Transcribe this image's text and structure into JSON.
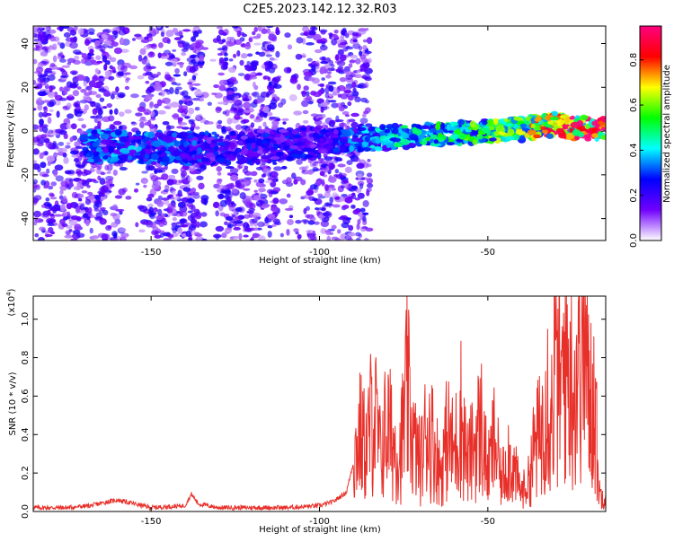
{
  "title": "C2E5.2023.142.12.32.R03",
  "chart_data": [
    {
      "type": "heatmap",
      "xlabel": "Height of straight line (km)",
      "ylabel": "Frequency (Hz)",
      "xlim": [
        -185,
        -15
      ],
      "ylim": [
        -50,
        48
      ],
      "xticks": [
        -150,
        -100,
        -50
      ],
      "xtick_labels": [
        "-150",
        "-100",
        "-50"
      ],
      "yticks": [
        40,
        20,
        0,
        -20,
        -40
      ],
      "ytick_labels": [
        "40",
        "20",
        "0",
        "-20",
        "-40"
      ],
      "colorbar": {
        "label": "Normalized spectral amplitude",
        "range": [
          0,
          0.95
        ],
        "ticks": [
          0.0,
          0.2,
          0.4,
          0.6,
          0.8
        ],
        "tick_labels": [
          "0.0",
          "0.2",
          "0.4",
          "0.6",
          "0.8"
        ],
        "colors": [
          "#ffffff",
          "#7000ff",
          "#0000ff",
          "#00ffff",
          "#00ff00",
          "#ffff00",
          "#ff0000",
          "#ff0080"
        ]
      },
      "ridge": [
        {
          "x": -165,
          "y": -7,
          "amp": 0.35
        },
        {
          "x": -140,
          "y": -8,
          "amp": 0.3
        },
        {
          "x": -127,
          "y": -8,
          "amp": 0.25
        },
        {
          "x": -100,
          "y": -5,
          "amp": 0.25
        },
        {
          "x": -80,
          "y": -3,
          "amp": 0.4
        },
        {
          "x": -60,
          "y": -1,
          "amp": 0.5
        },
        {
          "x": -40,
          "y": 1,
          "amp": 0.6
        },
        {
          "x": -30,
          "y": 3,
          "amp": 0.8
        },
        {
          "x": -20,
          "y": 1,
          "amp": 0.9
        }
      ]
    },
    {
      "type": "line",
      "xlabel": "Height of straight line (km)",
      "ylabel": "SNR (10 * v/v)",
      "yscale_label": "(x10",
      "yscale_exp": "4",
      "yscale_close": ")",
      "xlim": [
        -185,
        -15
      ],
      "ylim": [
        0,
        1.12
      ],
      "xticks": [
        -150,
        -100,
        -50
      ],
      "xtick_labels": [
        "-150",
        "-100",
        "-50"
      ],
      "yticks": [
        0.0,
        0.2,
        0.4,
        0.6,
        0.8,
        1.0
      ],
      "ytick_labels": [
        "0.0",
        "0.2",
        "0.4",
        "0.6",
        "0.8",
        "1.0"
      ],
      "color": "#e8302a",
      "series": [
        {
          "x": [
            -185,
            -175,
            -168,
            -163,
            -160,
            -155,
            -150,
            -140,
            -138,
            -136,
            -130,
            -120,
            -110,
            -100,
            -96,
            -92,
            -90,
            -88,
            -86,
            -84,
            -82,
            -80,
            -78,
            -76,
            -74,
            -72,
            -70,
            -68,
            -66,
            -64,
            -62,
            -60,
            -58,
            -56,
            -54,
            -52,
            -50,
            -48,
            -46,
            -44,
            -42,
            -40,
            -38,
            -36,
            -34,
            -33,
            -31,
            -30,
            -28,
            -27,
            -26,
            -25,
            -24,
            -23,
            -22,
            -21,
            -20,
            -19,
            -18,
            -17,
            -16,
            -15
          ],
          "y": [
            0.02,
            0.02,
            0.03,
            0.05,
            0.06,
            0.04,
            0.02,
            0.03,
            0.09,
            0.04,
            0.02,
            0.02,
            0.02,
            0.03,
            0.05,
            0.1,
            0.25,
            0.4,
            0.32,
            0.55,
            0.3,
            0.45,
            0.35,
            0.3,
            0.62,
            0.35,
            0.25,
            0.45,
            0.35,
            0.2,
            0.4,
            0.3,
            0.5,
            0.25,
            0.35,
            0.45,
            0.2,
            0.38,
            0.15,
            0.3,
            0.2,
            0.1,
            0.15,
            0.35,
            0.4,
            0.7,
            0.5,
            0.8,
            0.6,
            0.9,
            0.7,
            0.8,
            0.6,
            0.95,
            1.12,
            0.8,
            0.55,
            0.65,
            0.5,
            0.1,
            0.08,
            0.1
          ]
        }
      ]
    }
  ]
}
